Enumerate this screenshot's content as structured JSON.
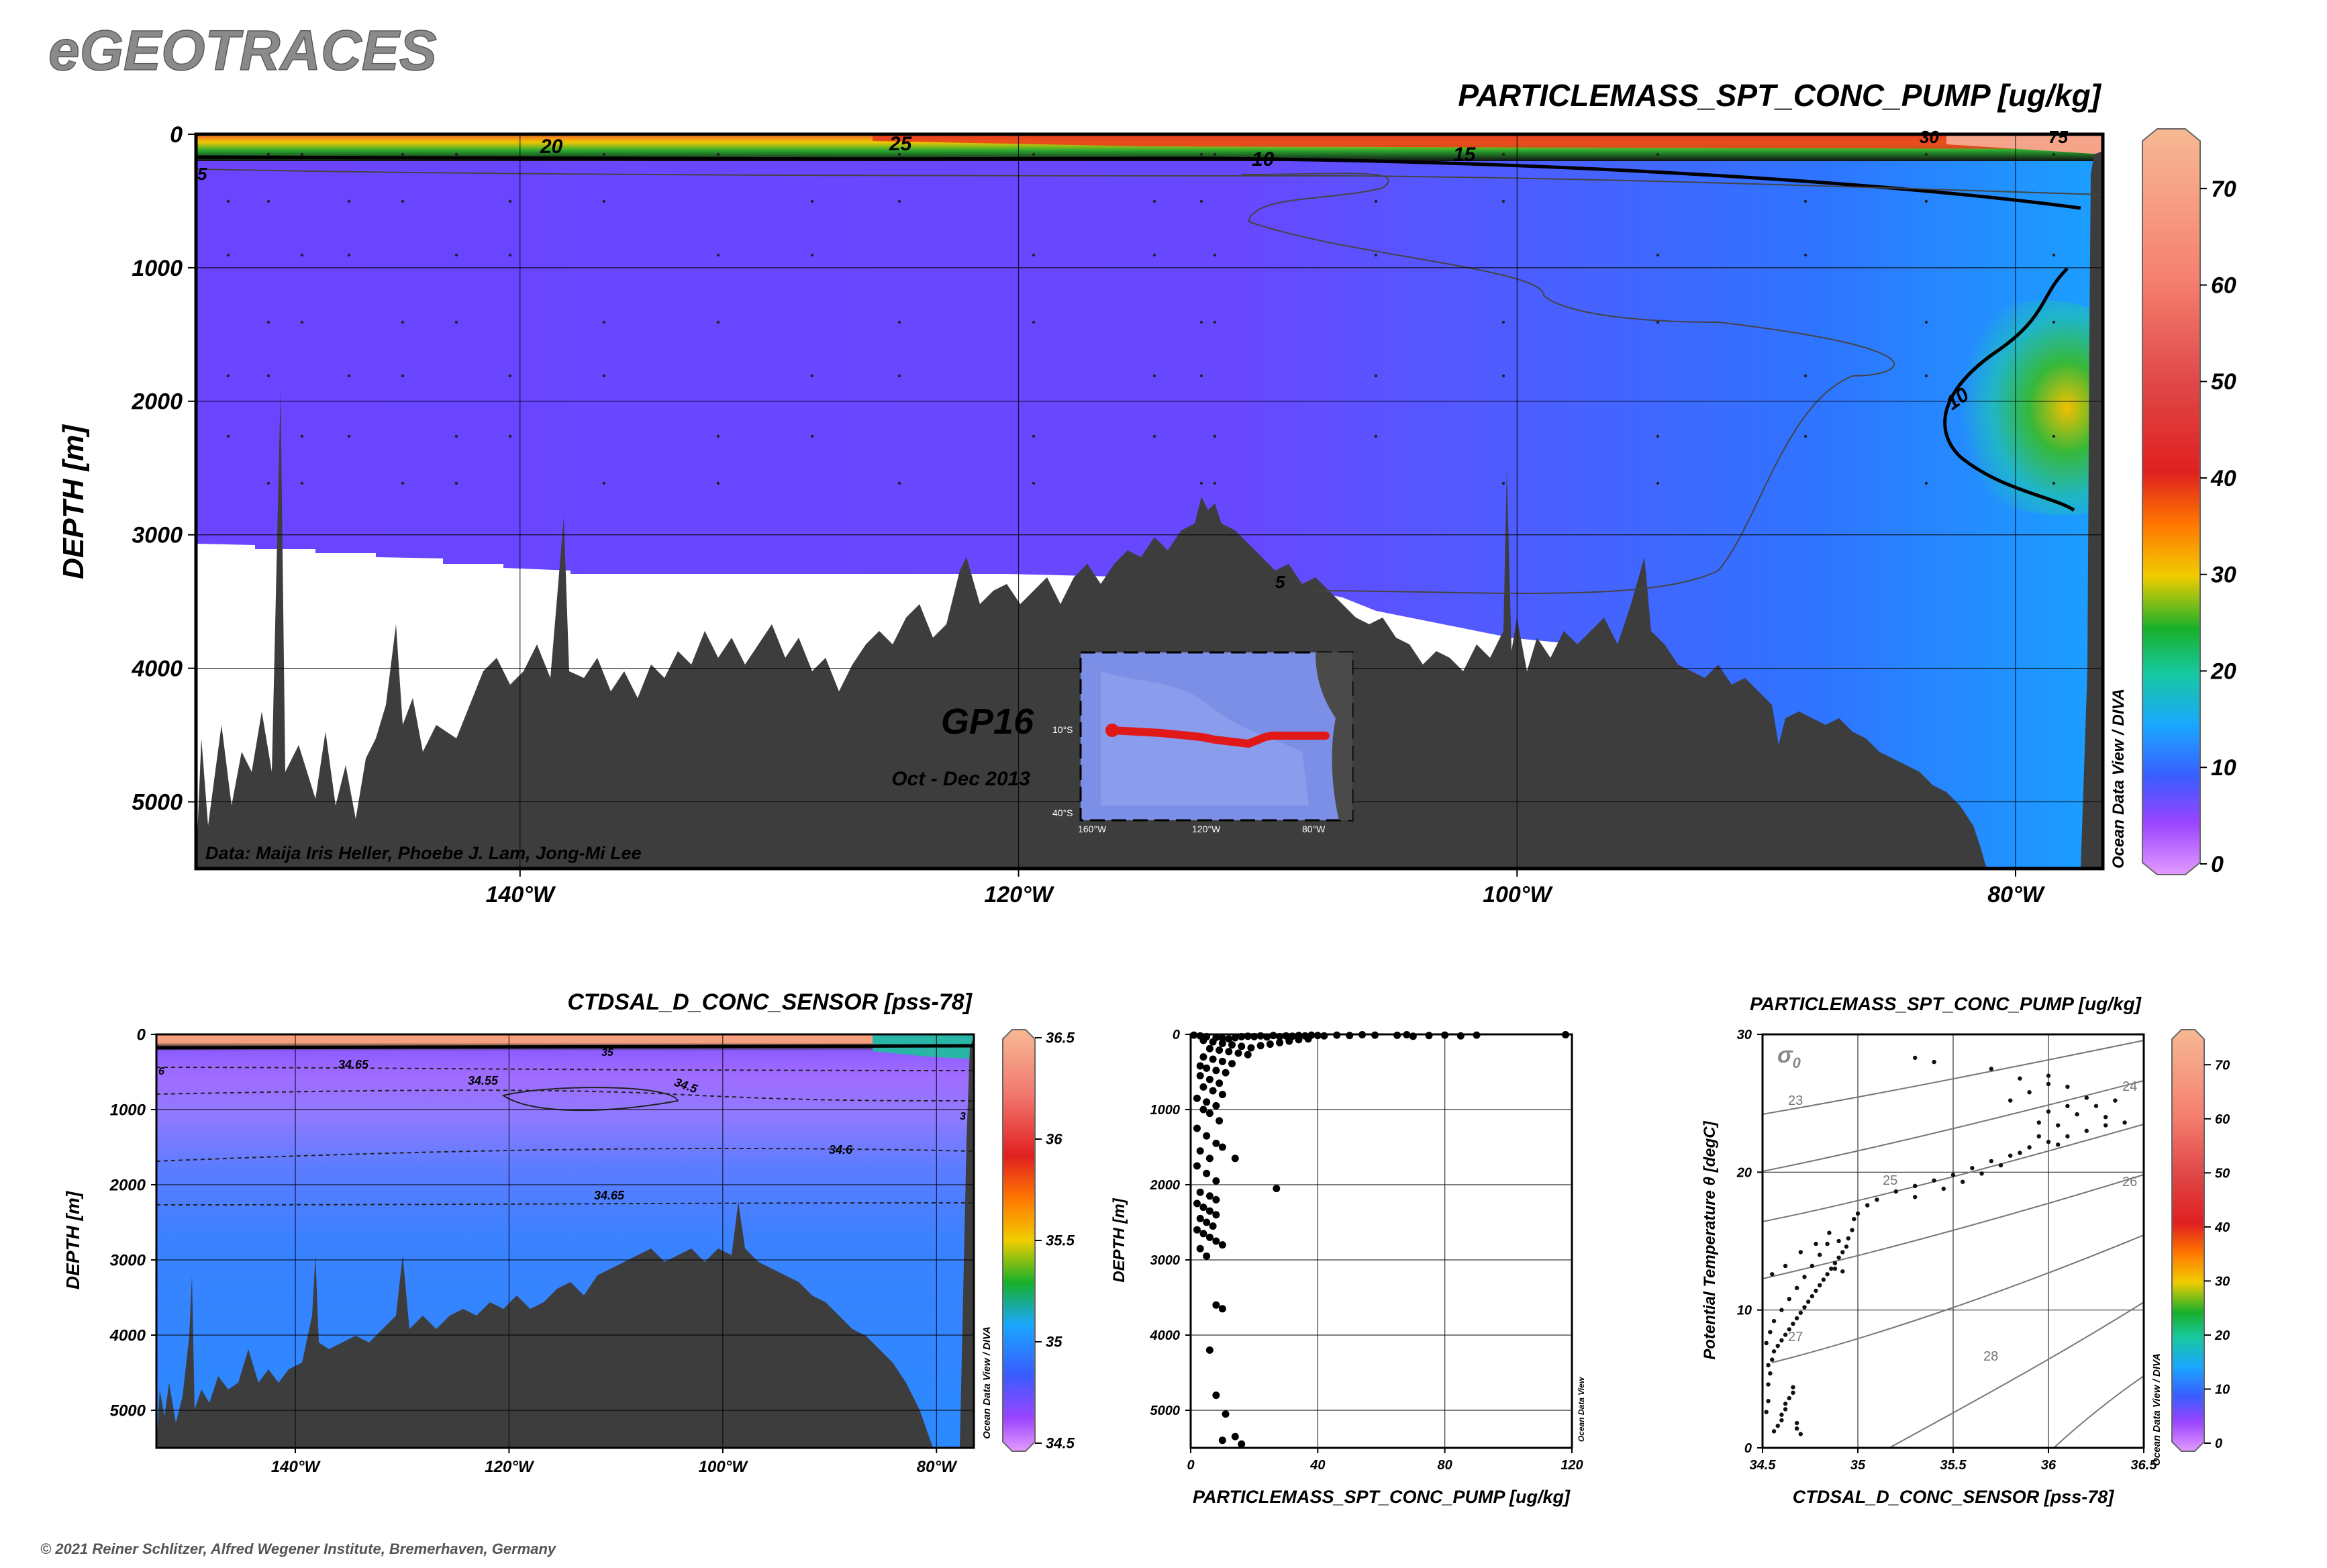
{
  "brand": "eGEOTRACES",
  "copyright": "© 2021 Reiner Schlitzer, Alfred Wegener Institute, Bremerhaven, Germany",
  "odv_label": "Ocean Data View / DIVA",
  "odv_label_scatter": "Ocean Data View",
  "chart_data": [
    {
      "id": "main-section",
      "type": "heatmap",
      "title": "PARTICLEMASS_SPT_CONC_PUMP [ug/kg]",
      "ylabel": "DEPTH [m]",
      "xlabel": "",
      "xlim": [
        -153,
        -76.5
      ],
      "ylim": [
        5500,
        0
      ],
      "x_ticks": [
        -140,
        -120,
        -100,
        -80
      ],
      "x_tick_labels": [
        "140°W",
        "120°W",
        "100°W",
        "80°W"
      ],
      "y_ticks": [
        0,
        1000,
        2000,
        3000,
        4000,
        5000
      ],
      "y_tick_labels": [
        "0",
        "1000",
        "2000",
        "3000",
        "4000",
        "5000"
      ],
      "colorbar": {
        "range": [
          0,
          75
        ],
        "ticks": [
          0,
          10,
          20,
          30,
          40,
          50,
          60,
          70
        ],
        "tick_labels": [
          "0",
          "10",
          "20",
          "30",
          "40",
          "50",
          "60",
          "70"
        ]
      },
      "contour_labels": [
        "20",
        "25",
        "10",
        "15",
        "5",
        "5",
        "10",
        "30",
        "75"
      ],
      "credit": "Data: Maija Iris Heller, Phoebe J. Lam, Jong-Mi Lee",
      "cruise": "GP16",
      "period": "Oct - Dec 2013",
      "inset_map": {
        "lat_labels": [
          "10°S",
          "40°S"
        ],
        "lon_labels": [
          "160°W",
          "120°W",
          "80°W"
        ]
      },
      "grid": true
    },
    {
      "id": "salinity-section",
      "type": "heatmap",
      "title": "CTDSAL_D_CONC_SENSOR [pss-78]",
      "ylabel": "DEPTH [m]",
      "xlim": [
        -153,
        -76.5
      ],
      "ylim": [
        5500,
        0
      ],
      "x_ticks": [
        -140,
        -120,
        -100,
        -80
      ],
      "x_tick_labels": [
        "140°W",
        "120°W",
        "100°W",
        "80°W"
      ],
      "y_ticks": [
        0,
        1000,
        2000,
        3000,
        4000,
        5000
      ],
      "y_tick_labels": [
        "0",
        "1000",
        "2000",
        "3000",
        "4000",
        "5000"
      ],
      "colorbar": {
        "range": [
          34.5,
          36.5
        ],
        "ticks": [
          34.5,
          35,
          35.5,
          36,
          36.5
        ],
        "tick_labels": [
          "34.5",
          "35",
          "35.5",
          "36",
          "36.5"
        ]
      },
      "contour_labels": [
        "34.65",
        "34.55",
        "34.5",
        "34.6",
        "34.65",
        "35",
        "6",
        "3"
      ],
      "grid": true
    },
    {
      "id": "depth-profile",
      "type": "scatter",
      "xlabel": "PARTICLEMASS_SPT_CONC_PUMP [ug/kg]",
      "ylabel": "DEPTH [m]",
      "xlim": [
        0,
        120
      ],
      "ylim": [
        5500,
        0
      ],
      "x_ticks": [
        0,
        40,
        80,
        120
      ],
      "x_tick_labels": [
        "0",
        "40",
        "80",
        "120"
      ],
      "y_ticks": [
        0,
        1000,
        2000,
        3000,
        4000,
        5000
      ],
      "y_tick_labels": [
        "0",
        "1000",
        "2000",
        "3000",
        "4000",
        "5000"
      ],
      "grid": true,
      "points": [
        [
          1,
          10
        ],
        [
          3,
          20
        ],
        [
          5,
          30
        ],
        [
          8,
          40
        ],
        [
          10,
          50
        ],
        [
          12,
          60
        ],
        [
          14,
          45
        ],
        [
          16,
          30
        ],
        [
          18,
          25
        ],
        [
          20,
          30
        ],
        [
          22,
          20
        ],
        [
          24,
          35
        ],
        [
          26,
          15
        ],
        [
          28,
          30
        ],
        [
          30,
          20
        ],
        [
          32,
          25
        ],
        [
          34,
          15
        ],
        [
          36,
          20
        ],
        [
          38,
          10
        ],
        [
          40,
          15
        ],
        [
          42,
          20
        ],
        [
          46,
          10
        ],
        [
          50,
          15
        ],
        [
          54,
          5
        ],
        [
          58,
          10
        ],
        [
          65,
          12
        ],
        [
          68,
          5
        ],
        [
          70,
          25
        ],
        [
          75,
          15
        ],
        [
          80,
          10
        ],
        [
          85,
          20
        ],
        [
          90,
          10
        ],
        [
          118,
          5
        ],
        [
          4,
          80
        ],
        [
          7,
          100
        ],
        [
          10,
          120
        ],
        [
          13,
          140
        ],
        [
          16,
          160
        ],
        [
          19,
          180
        ],
        [
          22,
          150
        ],
        [
          25,
          130
        ],
        [
          28,
          110
        ],
        [
          31,
          90
        ],
        [
          34,
          70
        ],
        [
          37,
          60
        ],
        [
          6,
          190
        ],
        [
          9,
          210
        ],
        [
          12,
          230
        ],
        [
          15,
          250
        ],
        [
          18,
          270
        ],
        [
          4,
          300
        ],
        [
          7,
          330
        ],
        [
          10,
          360
        ],
        [
          13,
          390
        ],
        [
          3,
          420
        ],
        [
          5,
          450
        ],
        [
          8,
          480
        ],
        [
          11,
          510
        ],
        [
          3,
          550
        ],
        [
          6,
          600
        ],
        [
          9,
          650
        ],
        [
          4,
          700
        ],
        [
          7,
          750
        ],
        [
          10,
          800
        ],
        [
          2,
          850
        ],
        [
          5,
          900
        ],
        [
          8,
          950
        ],
        [
          4,
          1000
        ],
        [
          6,
          1050
        ],
        [
          9,
          1150
        ],
        [
          2,
          1250
        ],
        [
          5,
          1350
        ],
        [
          8,
          1450
        ],
        [
          3,
          1550
        ],
        [
          6,
          1650
        ],
        [
          2,
          1750
        ],
        [
          5,
          1850
        ],
        [
          8,
          1950
        ],
        [
          14,
          1650
        ],
        [
          10,
          1500
        ],
        [
          3,
          2100
        ],
        [
          6,
          2150
        ],
        [
          8,
          2200
        ],
        [
          2,
          2250
        ],
        [
          4,
          2300
        ],
        [
          6,
          2350
        ],
        [
          8,
          2400
        ],
        [
          3,
          2450
        ],
        [
          5,
          2500
        ],
        [
          7,
          2550
        ],
        [
          2,
          2600
        ],
        [
          4,
          2650
        ],
        [
          6,
          2700
        ],
        [
          8,
          2750
        ],
        [
          10,
          2800
        ],
        [
          3,
          2850
        ],
        [
          5,
          2950
        ],
        [
          27,
          2050
        ],
        [
          8,
          3600
        ],
        [
          10,
          3650
        ],
        [
          6,
          4200
        ],
        [
          8,
          4800
        ],
        [
          11,
          5050
        ],
        [
          14,
          5350
        ],
        [
          10,
          5400
        ],
        [
          16,
          5450
        ]
      ]
    },
    {
      "id": "ts-diagram",
      "type": "scatter",
      "title": "PARTICLEMASS_SPT_CONC_PUMP [ug/kg]",
      "xlabel": "CTDSAL_D_CONC_SENSOR [pss-78]",
      "ylabel": "Potential Temperature θ [degC]",
      "xlim": [
        34.5,
        36.5
      ],
      "ylim": [
        0,
        30
      ],
      "x_ticks": [
        34.5,
        35,
        35.5,
        36,
        36.5
      ],
      "x_tick_labels": [
        "34.5",
        "35",
        "35.5",
        "36",
        "36.5"
      ],
      "y_ticks": [
        0,
        10,
        20,
        30
      ],
      "y_tick_labels": [
        "0",
        "10",
        "20",
        "30"
      ],
      "sigma_label": "σ",
      "sigma_sub": "0",
      "isopycnal_labels": [
        "23",
        "24",
        "25",
        "26",
        "27",
        "28"
      ],
      "colorbar": {
        "range": [
          0,
          75
        ],
        "ticks": [
          0,
          10,
          20,
          30,
          40,
          50,
          60,
          70
        ],
        "tick_labels": [
          "0",
          "10",
          "20",
          "30",
          "40",
          "50",
          "60",
          "70"
        ]
      },
      "grid": true,
      "points": [
        [
          34.56,
          1.2
        ],
        [
          34.58,
          1.6
        ],
        [
          34.6,
          2.0
        ],
        [
          34.6,
          2.4
        ],
        [
          34.62,
          2.8
        ],
        [
          34.62,
          3.2
        ],
        [
          34.64,
          3.6
        ],
        [
          34.66,
          4.0
        ],
        [
          34.66,
          4.4
        ],
        [
          34.68,
          1.4
        ],
        [
          34.68,
          1.8
        ],
        [
          34.7,
          1.0
        ],
        [
          34.52,
          2.6
        ],
        [
          34.53,
          3.4
        ],
        [
          34.53,
          4.6
        ],
        [
          34.54,
          5.4
        ],
        [
          34.53,
          6.0
        ],
        [
          34.55,
          6.4
        ],
        [
          34.56,
          7.0
        ],
        [
          34.58,
          7.4
        ],
        [
          34.6,
          7.8
        ],
        [
          34.62,
          8.2
        ],
        [
          34.64,
          8.6
        ],
        [
          34.66,
          9.0
        ],
        [
          34.68,
          9.4
        ],
        [
          34.7,
          9.8
        ],
        [
          34.72,
          10.2
        ],
        [
          34.74,
          10.6
        ],
        [
          34.76,
          11.0
        ],
        [
          34.78,
          11.4
        ],
        [
          34.8,
          11.8
        ],
        [
          34.82,
          12.2
        ],
        [
          34.84,
          12.6
        ],
        [
          34.86,
          13.0
        ],
        [
          34.88,
          13.4
        ],
        [
          34.9,
          13.8
        ],
        [
          34.92,
          14.2
        ],
        [
          34.94,
          14.6
        ],
        [
          34.95,
          15.2
        ],
        [
          34.97,
          15.8
        ],
        [
          34.98,
          16.6
        ],
        [
          34.52,
          7.6
        ],
        [
          34.54,
          8.4
        ],
        [
          34.56,
          9.2
        ],
        [
          34.6,
          10.0
        ],
        [
          34.64,
          10.8
        ],
        [
          34.68,
          11.6
        ],
        [
          34.72,
          12.4
        ],
        [
          34.76,
          13.2
        ],
        [
          34.8,
          14.0
        ],
        [
          34.84,
          14.8
        ],
        [
          34.88,
          13.0
        ],
        [
          34.92,
          12.8
        ],
        [
          34.55,
          12.6
        ],
        [
          34.62,
          13.2
        ],
        [
          34.7,
          14.2
        ],
        [
          34.78,
          14.8
        ],
        [
          34.85,
          15.6
        ],
        [
          34.9,
          15.0
        ],
        [
          35.0,
          17.0
        ],
        [
          35.05,
          17.6
        ],
        [
          35.1,
          18.0
        ],
        [
          35.2,
          18.6
        ],
        [
          35.3,
          19.0
        ],
        [
          35.4,
          19.4
        ],
        [
          35.5,
          19.8
        ],
        [
          35.6,
          20.3
        ],
        [
          35.7,
          20.8
        ],
        [
          35.8,
          21.2
        ],
        [
          35.9,
          21.8
        ],
        [
          36.0,
          22.2
        ],
        [
          36.1,
          22.6
        ],
        [
          36.2,
          23.0
        ],
        [
          36.3,
          23.4
        ],
        [
          36.4,
          23.6
        ],
        [
          35.3,
          18.2
        ],
        [
          35.45,
          18.8
        ],
        [
          35.55,
          19.3
        ],
        [
          35.65,
          19.9
        ],
        [
          35.75,
          20.5
        ],
        [
          35.85,
          21.4
        ],
        [
          35.95,
          22.6
        ],
        [
          36.05,
          23.4
        ],
        [
          36.15,
          24.2
        ],
        [
          36.25,
          24.8
        ],
        [
          36.35,
          25.2
        ],
        [
          35.8,
          25.2
        ],
        [
          35.9,
          25.8
        ],
        [
          36.0,
          26.4
        ],
        [
          36.1,
          26.2
        ],
        [
          36.0,
          27.0
        ],
        [
          35.85,
          26.8
        ],
        [
          35.7,
          27.5
        ],
        [
          35.4,
          28.0
        ],
        [
          35.3,
          28.3
        ],
        [
          36.2,
          25.4
        ],
        [
          36.3,
          24.0
        ],
        [
          36.1,
          24.8
        ],
        [
          36.0,
          24.4
        ],
        [
          35.95,
          23.6
        ],
        [
          36.05,
          22.0
        ]
      ]
    }
  ]
}
